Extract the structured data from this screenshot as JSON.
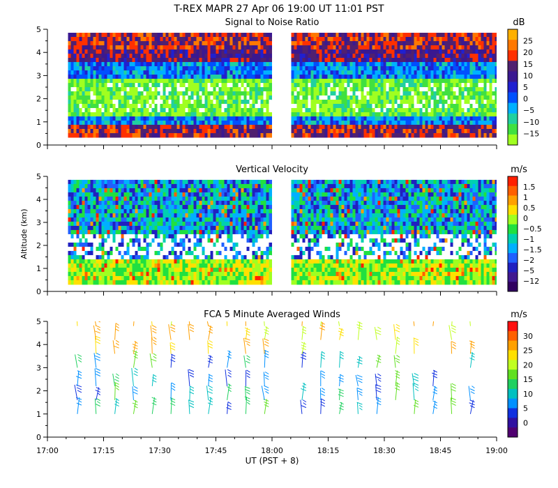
{
  "header": {
    "title": "T-REX  MAPR 27 Apr 06  19:00 UT  11:01  PST"
  },
  "xaxis": {
    "label": "UT  (PST + 8)",
    "ticks": [
      "17:00",
      "17:15",
      "17:30",
      "17:45",
      "18:00",
      "18:15",
      "18:30",
      "18:45",
      "19:00"
    ],
    "range_minutes": [
      0,
      120
    ]
  },
  "chart_data": [
    {
      "type": "heatmap",
      "title": "Signal to Noise Ratio",
      "ylabel": "",
      "yticks": [
        "0",
        "1",
        "2",
        "3",
        "4",
        "5"
      ],
      "ylim": [
        0,
        5
      ],
      "data_gap_minutes": [
        60,
        65
      ],
      "colorbar": {
        "unit": "dB",
        "labels": [
          "25",
          "20",
          "15",
          "10",
          "5",
          "0",
          "−5",
          "−10",
          "−15"
        ],
        "colors": [
          "#ffb000",
          "#ff7800",
          "#ff3000",
          "#502070",
          "#3a1890",
          "#2020d0",
          "#0050ff",
          "#00b0ff",
          "#20d0a0",
          "#40e040",
          "#a0ff20"
        ]
      }
    },
    {
      "type": "heatmap",
      "title": "Vertical Velocity",
      "ylabel": "Altitude (km)",
      "yticks": [
        "0",
        "1",
        "2",
        "3",
        "4",
        "5"
      ],
      "ylim": [
        0,
        5
      ],
      "data_gap_minutes": [
        60,
        65
      ],
      "colorbar": {
        "unit": "m/s",
        "labels": [
          "1.5",
          "1",
          "0.5",
          "0",
          "−0.5",
          "−1",
          "−1.5",
          "−2",
          "−5",
          "−12"
        ],
        "colors": [
          "#ff2000",
          "#ff6000",
          "#ffa000",
          "#ffe000",
          "#a0ff20",
          "#20e040",
          "#00d0b0",
          "#00b0ff",
          "#2060ff",
          "#2020c0",
          "#401890",
          "#300060"
        ]
      }
    },
    {
      "type": "scatter",
      "title": "FCA 5 Minute Averaged Winds",
      "ylabel": "",
      "yticks": [
        "0",
        "1",
        "2",
        "3",
        "4",
        "5"
      ],
      "ylim": [
        0,
        5
      ],
      "colorbar": {
        "unit": "m/s",
        "labels": [
          "30",
          "25",
          "20",
          "15",
          "10",
          "5",
          "0"
        ],
        "colors": [
          "#ff1010",
          "#ff6000",
          "#ffa000",
          "#ffe000",
          "#c0ff20",
          "#60e020",
          "#20d060",
          "#00c0c0",
          "#0090ff",
          "#1030e0",
          "#3010a0",
          "#500070"
        ]
      }
    }
  ]
}
